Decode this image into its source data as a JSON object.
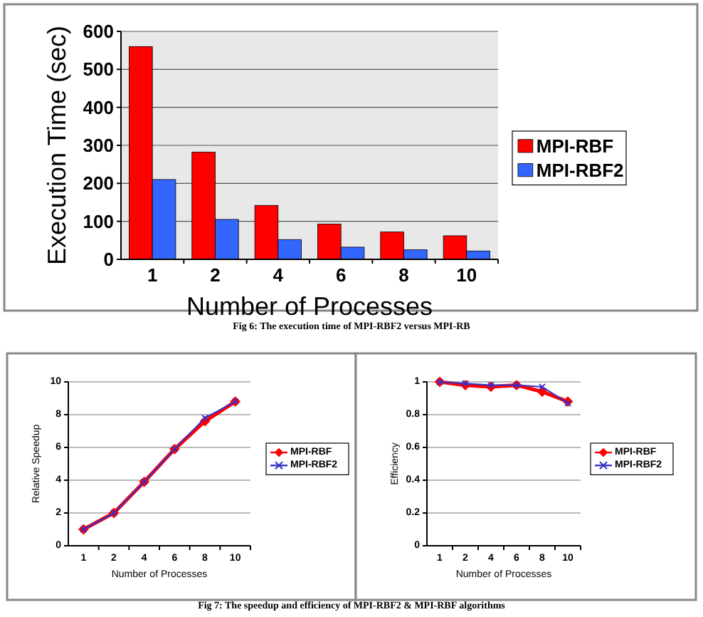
{
  "chart_data": [
    {
      "type": "bar",
      "xlabel": "Number of Processes",
      "ylabel": "Execution Time (sec)",
      "categories": [
        "1",
        "2",
        "4",
        "6",
        "8",
        "10"
      ],
      "series": [
        {
          "name": "MPI-RBF",
          "color": "#ff0000",
          "values": [
            560,
            282,
            142,
            93,
            72,
            62
          ]
        },
        {
          "name": "MPI-RBF2",
          "color": "#3366ff",
          "values": [
            210,
            105,
            52,
            32,
            25,
            22
          ]
        }
      ],
      "ylim": [
        0,
        600
      ],
      "yticks": [
        0,
        100,
        200,
        300,
        400,
        500,
        600
      ],
      "grid": "y",
      "legend": "right",
      "annotations": [
        "Fig 6: The execution time of MPI-RBF2 versus MPI-RB"
      ]
    },
    {
      "type": "line",
      "xlabel": "Number of Processes",
      "ylabel": "Relative Speedup",
      "categories": [
        "1",
        "2",
        "4",
        "6",
        "8",
        "10"
      ],
      "series": [
        {
          "name": "MPI-RBF",
          "color": "#ff0000",
          "marker": "diamond",
          "values": [
            1,
            2,
            3.9,
            5.9,
            7.6,
            8.8
          ]
        },
        {
          "name": "MPI-RBF2",
          "color": "#3333cc",
          "marker": "cross",
          "values": [
            1,
            2,
            3.9,
            5.9,
            7.8,
            8.8
          ]
        }
      ],
      "ylim": [
        0,
        10
      ],
      "yticks": [
        0,
        2,
        4,
        6,
        8,
        10
      ],
      "grid": "y",
      "legend": "right",
      "annotations": [
        "Fig 7: The speedup and efficiency of  MPI-RBF2 & MPI-RBF algorithms"
      ]
    },
    {
      "type": "line",
      "xlabel": "Number of Processes",
      "ylabel": "Efficiency",
      "categories": [
        "1",
        "2",
        "4",
        "6",
        "8",
        "10"
      ],
      "series": [
        {
          "name": "MPI-RBF",
          "color": "#ff0000",
          "marker": "diamond",
          "values": [
            1,
            0.98,
            0.97,
            0.98,
            0.94,
            0.88
          ]
        },
        {
          "name": "MPI-RBF2",
          "color": "#3333cc",
          "marker": "cross",
          "values": [
            1,
            0.99,
            0.98,
            0.98,
            0.97,
            0.87
          ]
        }
      ],
      "ylim": [
        0,
        1
      ],
      "yticks": [
        0,
        0.2,
        0.4,
        0.6,
        0.8,
        1
      ],
      "grid": "y",
      "legend": "right"
    }
  ]
}
